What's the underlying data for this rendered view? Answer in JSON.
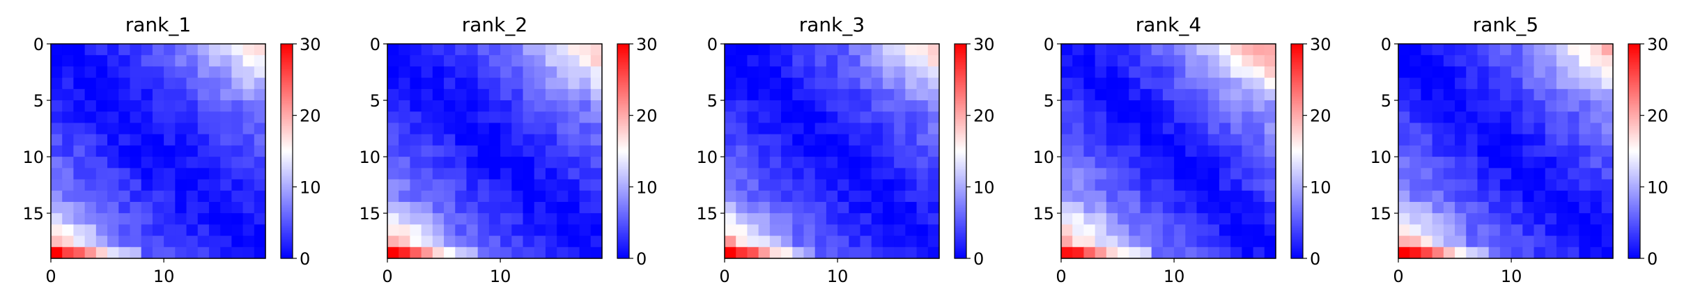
{
  "chart_data": [
    {
      "type": "heatmap",
      "title": "rank_1",
      "size": 19,
      "pattern": {
        "seed": 11,
        "diag_slope": 0.55,
        "corner_bottom_left": 11.0,
        "corner_top_right": 7.5,
        "noise": 1.6
      },
      "xticks": [
        0,
        10
      ],
      "yticks": [
        0,
        5,
        10,
        15
      ],
      "colorbar": {
        "min": 0,
        "max": 30,
        "ticks": [
          0,
          10,
          20,
          30
        ],
        "colormap": "bwr"
      }
    },
    {
      "type": "heatmap",
      "title": "rank_2",
      "size": 19,
      "pattern": {
        "seed": 23,
        "diag_slope": 0.6,
        "corner_bottom_left": 12.0,
        "corner_top_right": 8.0,
        "noise": 1.5
      },
      "xticks": [
        0,
        10
      ],
      "yticks": [
        0,
        5,
        10,
        15
      ],
      "colorbar": {
        "min": 0,
        "max": 30,
        "ticks": [
          0,
          10,
          20,
          30
        ],
        "colormap": "bwr"
      }
    },
    {
      "type": "heatmap",
      "title": "rank_3",
      "size": 19,
      "pattern": {
        "seed": 37,
        "diag_slope": 0.55,
        "corner_bottom_left": 13.0,
        "corner_top_right": 8.0,
        "noise": 1.5
      },
      "xticks": [
        0,
        10
      ],
      "yticks": [
        0,
        5,
        10,
        15
      ],
      "colorbar": {
        "min": 0,
        "max": 30,
        "ticks": [
          0,
          10,
          20,
          30
        ],
        "colormap": "bwr"
      }
    },
    {
      "type": "heatmap",
      "title": "rank_4",
      "size": 19,
      "pattern": {
        "seed": 41,
        "diag_slope": 0.7,
        "corner_bottom_left": 10.0,
        "corner_top_right": 9.0,
        "noise": 1.6
      },
      "xticks": [
        0,
        10
      ],
      "yticks": [
        0,
        5,
        10,
        15
      ],
      "colorbar": {
        "min": 0,
        "max": 30,
        "ticks": [
          0,
          10,
          20,
          30
        ],
        "colormap": "bwr"
      }
    },
    {
      "type": "heatmap",
      "title": "rank_5",
      "size": 19,
      "pattern": {
        "seed": 53,
        "diag_slope": 0.62,
        "corner_bottom_left": 12.0,
        "corner_top_right": 8.5,
        "noise": 1.5
      },
      "xticks": [
        0,
        10
      ],
      "yticks": [
        0,
        5,
        10,
        15
      ],
      "colorbar": {
        "min": 0,
        "max": 30,
        "ticks": [
          0,
          10,
          20,
          30
        ],
        "colormap": "bwr"
      }
    }
  ]
}
